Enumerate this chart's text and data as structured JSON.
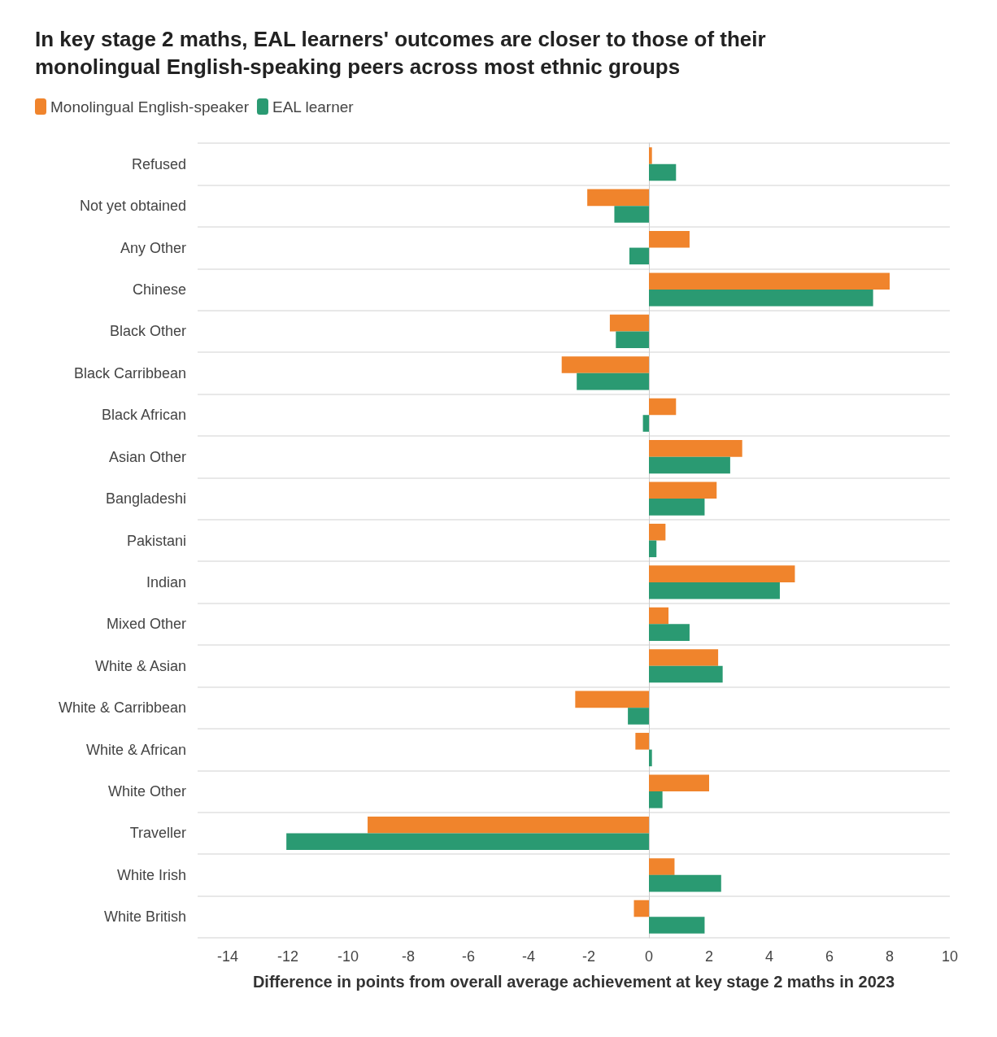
{
  "chart_data": {
    "type": "bar",
    "orientation": "horizontal",
    "title": "In key stage 2 maths, EAL learners' outcomes are closer to those of their\nmonolingual English-speaking peers across most ethnic groups",
    "xlabel": "Difference in points from overall average achievement at key stage 2 maths in 2023",
    "categories": [
      "Refused",
      "Not yet obtained",
      "Any Other",
      "Chinese",
      "Black Other",
      "Black Carribbean",
      "Black African",
      "Asian Other",
      "Bangladeshi",
      "Pakistani",
      "Indian",
      "Mixed Other",
      "White & Asian",
      "White & Carribbean",
      "White & African",
      "White Other",
      "Traveller",
      "White Irish",
      "White British"
    ],
    "series": [
      {
        "name": "Monolingual English-speaker",
        "color": "#f0842c",
        "values": [
          0.1,
          -2.05,
          1.35,
          8.0,
          -1.3,
          -2.9,
          0.9,
          3.1,
          2.25,
          0.55,
          4.85,
          0.65,
          2.3,
          -2.45,
          -0.45,
          2.0,
          -9.35,
          0.85,
          -0.5
        ]
      },
      {
        "name": "EAL learner",
        "color": "#2a9a72",
        "values": [
          0.9,
          -1.15,
          -0.65,
          7.45,
          -1.1,
          -2.4,
          -0.2,
          2.7,
          1.85,
          0.25,
          4.35,
          1.35,
          2.45,
          -0.7,
          0.1,
          0.45,
          -12.05,
          2.4,
          1.85
        ]
      }
    ],
    "xlim": [
      -15,
      10
    ],
    "xticks": [
      -14,
      -12,
      -10,
      -8,
      -6,
      -4,
      -2,
      0,
      2,
      4,
      6,
      8,
      10
    ],
    "grid": "y",
    "legend": "top left"
  }
}
